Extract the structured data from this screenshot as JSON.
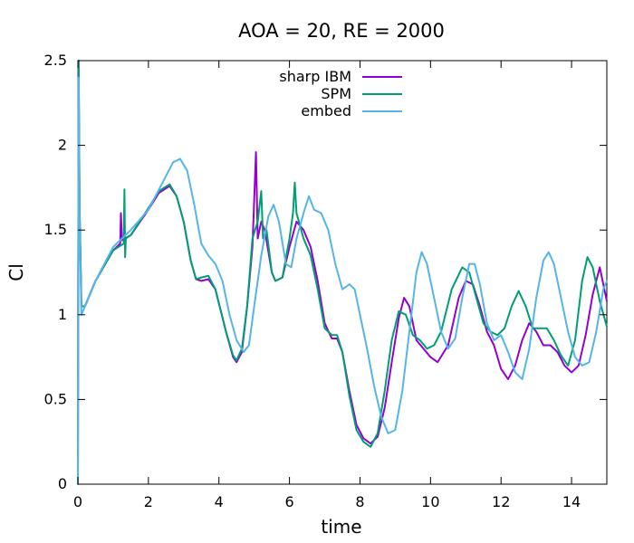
{
  "chart_data": {
    "type": "line",
    "title": "AOA = 20, RE = 2000",
    "xlabel": "time",
    "ylabel": "Cl",
    "xlim": [
      0,
      15
    ],
    "ylim": [
      0,
      2.5
    ],
    "xticks": [
      0,
      2,
      4,
      6,
      8,
      10,
      12,
      14
    ],
    "yticks": [
      0,
      0.5,
      1,
      1.5,
      2,
      2.5
    ],
    "xtick_labels": [
      "0",
      "2",
      "4",
      "6",
      "8",
      "10",
      "12",
      "14"
    ],
    "ytick_labels": [
      "0",
      "0.5",
      "1",
      "1.5",
      "2",
      "2.5"
    ],
    "grid": false,
    "legend_position": "top-center",
    "series": [
      {
        "name": "sharp IBM",
        "color": "#9400d3",
        "points": [
          [
            0.0,
            0.0
          ],
          [
            0.02,
            2.5
          ],
          [
            0.05,
            1.6
          ],
          [
            0.1,
            1.05
          ],
          [
            0.2,
            1.05
          ],
          [
            0.5,
            1.2
          ],
          [
            1.0,
            1.38
          ],
          [
            1.2,
            1.42
          ],
          [
            1.22,
            1.6
          ],
          [
            1.25,
            1.44
          ],
          [
            1.5,
            1.47
          ],
          [
            2.0,
            1.62
          ],
          [
            2.3,
            1.72
          ],
          [
            2.6,
            1.76
          ],
          [
            2.8,
            1.7
          ],
          [
            3.0,
            1.55
          ],
          [
            3.2,
            1.32
          ],
          [
            3.35,
            1.21
          ],
          [
            3.5,
            1.2
          ],
          [
            3.7,
            1.21
          ],
          [
            3.9,
            1.15
          ],
          [
            4.2,
            0.9
          ],
          [
            4.4,
            0.75
          ],
          [
            4.5,
            0.72
          ],
          [
            4.65,
            0.78
          ],
          [
            4.8,
            1.05
          ],
          [
            4.95,
            1.4
          ],
          [
            5.05,
            1.96
          ],
          [
            5.1,
            1.45
          ],
          [
            5.2,
            1.55
          ],
          [
            5.3,
            1.5
          ],
          [
            5.5,
            1.25
          ],
          [
            5.6,
            1.2
          ],
          [
            5.8,
            1.22
          ],
          [
            6.0,
            1.4
          ],
          [
            6.2,
            1.55
          ],
          [
            6.4,
            1.5
          ],
          [
            6.6,
            1.4
          ],
          [
            6.8,
            1.2
          ],
          [
            7.0,
            0.95
          ],
          [
            7.2,
            0.86
          ],
          [
            7.35,
            0.86
          ],
          [
            7.5,
            0.78
          ],
          [
            7.7,
            0.55
          ],
          [
            7.9,
            0.35
          ],
          [
            8.1,
            0.27
          ],
          [
            8.3,
            0.24
          ],
          [
            8.5,
            0.28
          ],
          [
            8.7,
            0.45
          ],
          [
            8.9,
            0.72
          ],
          [
            9.1,
            0.98
          ],
          [
            9.25,
            1.1
          ],
          [
            9.4,
            1.05
          ],
          [
            9.6,
            0.85
          ],
          [
            9.8,
            0.8
          ],
          [
            10.0,
            0.75
          ],
          [
            10.2,
            0.72
          ],
          [
            10.5,
            0.82
          ],
          [
            10.8,
            1.1
          ],
          [
            11.0,
            1.2
          ],
          [
            11.2,
            1.18
          ],
          [
            11.4,
            1.05
          ],
          [
            11.6,
            0.9
          ],
          [
            11.8,
            0.82
          ],
          [
            12.0,
            0.68
          ],
          [
            12.2,
            0.62
          ],
          [
            12.4,
            0.7
          ],
          [
            12.6,
            0.85
          ],
          [
            12.8,
            0.95
          ],
          [
            13.0,
            0.9
          ],
          [
            13.2,
            0.82
          ],
          [
            13.4,
            0.82
          ],
          [
            13.6,
            0.78
          ],
          [
            13.8,
            0.7
          ],
          [
            14.0,
            0.66
          ],
          [
            14.2,
            0.7
          ],
          [
            14.4,
            0.88
          ],
          [
            14.6,
            1.12
          ],
          [
            14.8,
            1.28
          ],
          [
            15.0,
            1.08
          ]
        ]
      },
      {
        "name": "SPM",
        "color": "#009e73",
        "points": [
          [
            0.0,
            0.0
          ],
          [
            0.02,
            2.5
          ],
          [
            0.05,
            1.6
          ],
          [
            0.1,
            1.05
          ],
          [
            0.2,
            1.05
          ],
          [
            0.5,
            1.2
          ],
          [
            1.0,
            1.38
          ],
          [
            1.3,
            1.42
          ],
          [
            1.32,
            1.74
          ],
          [
            1.34,
            1.34
          ],
          [
            1.36,
            1.45
          ],
          [
            1.5,
            1.47
          ],
          [
            2.0,
            1.63
          ],
          [
            2.3,
            1.73
          ],
          [
            2.6,
            1.77
          ],
          [
            2.8,
            1.7
          ],
          [
            3.0,
            1.55
          ],
          [
            3.2,
            1.32
          ],
          [
            3.35,
            1.21
          ],
          [
            3.5,
            1.22
          ],
          [
            3.7,
            1.23
          ],
          [
            3.9,
            1.15
          ],
          [
            4.2,
            0.9
          ],
          [
            4.4,
            0.76
          ],
          [
            4.5,
            0.73
          ],
          [
            4.65,
            0.8
          ],
          [
            4.8,
            1.05
          ],
          [
            4.95,
            1.45
          ],
          [
            5.1,
            1.55
          ],
          [
            5.2,
            1.73
          ],
          [
            5.25,
            1.45
          ],
          [
            5.35,
            1.5
          ],
          [
            5.5,
            1.25
          ],
          [
            5.6,
            1.2
          ],
          [
            5.8,
            1.22
          ],
          [
            6.0,
            1.45
          ],
          [
            6.1,
            1.6
          ],
          [
            6.15,
            1.78
          ],
          [
            6.2,
            1.6
          ],
          [
            6.4,
            1.45
          ],
          [
            6.6,
            1.35
          ],
          [
            6.8,
            1.15
          ],
          [
            7.0,
            0.92
          ],
          [
            7.2,
            0.88
          ],
          [
            7.35,
            0.88
          ],
          [
            7.5,
            0.78
          ],
          [
            7.7,
            0.52
          ],
          [
            7.9,
            0.32
          ],
          [
            8.1,
            0.25
          ],
          [
            8.3,
            0.22
          ],
          [
            8.5,
            0.3
          ],
          [
            8.7,
            0.55
          ],
          [
            8.9,
            0.85
          ],
          [
            9.1,
            1.02
          ],
          [
            9.3,
            1.0
          ],
          [
            9.5,
            0.88
          ],
          [
            9.7,
            0.85
          ],
          [
            9.9,
            0.8
          ],
          [
            10.1,
            0.82
          ],
          [
            10.3,
            0.9
          ],
          [
            10.6,
            1.15
          ],
          [
            10.9,
            1.28
          ],
          [
            11.1,
            1.25
          ],
          [
            11.3,
            1.1
          ],
          [
            11.5,
            0.95
          ],
          [
            11.7,
            0.9
          ],
          [
            11.9,
            0.88
          ],
          [
            12.1,
            0.92
          ],
          [
            12.3,
            1.05
          ],
          [
            12.5,
            1.14
          ],
          [
            12.7,
            1.05
          ],
          [
            12.9,
            0.92
          ],
          [
            13.1,
            0.92
          ],
          [
            13.3,
            0.92
          ],
          [
            13.5,
            0.85
          ],
          [
            13.7,
            0.76
          ],
          [
            13.9,
            0.7
          ],
          [
            14.1,
            0.85
          ],
          [
            14.3,
            1.2
          ],
          [
            14.45,
            1.34
          ],
          [
            14.6,
            1.28
          ],
          [
            14.8,
            1.08
          ],
          [
            15.0,
            0.93
          ]
        ]
      },
      {
        "name": "embed",
        "color": "#56b4e9",
        "points": [
          [
            0.0,
            0.0
          ],
          [
            0.02,
            2.4
          ],
          [
            0.05,
            1.5
          ],
          [
            0.1,
            1.0
          ],
          [
            0.2,
            1.05
          ],
          [
            0.5,
            1.2
          ],
          [
            1.0,
            1.4
          ],
          [
            1.5,
            1.5
          ],
          [
            2.0,
            1.62
          ],
          [
            2.4,
            1.78
          ],
          [
            2.7,
            1.9
          ],
          [
            2.9,
            1.92
          ],
          [
            3.1,
            1.85
          ],
          [
            3.3,
            1.65
          ],
          [
            3.5,
            1.42
          ],
          [
            3.7,
            1.35
          ],
          [
            3.9,
            1.3
          ],
          [
            4.1,
            1.2
          ],
          [
            4.3,
            1.0
          ],
          [
            4.5,
            0.85
          ],
          [
            4.7,
            0.78
          ],
          [
            4.85,
            0.82
          ],
          [
            5.0,
            1.05
          ],
          [
            5.2,
            1.35
          ],
          [
            5.4,
            1.58
          ],
          [
            5.55,
            1.65
          ],
          [
            5.7,
            1.55
          ],
          [
            5.9,
            1.3
          ],
          [
            6.05,
            1.28
          ],
          [
            6.2,
            1.45
          ],
          [
            6.4,
            1.6
          ],
          [
            6.55,
            1.7
          ],
          [
            6.7,
            1.62
          ],
          [
            6.9,
            1.6
          ],
          [
            7.1,
            1.5
          ],
          [
            7.3,
            1.3
          ],
          [
            7.5,
            1.15
          ],
          [
            7.7,
            1.18
          ],
          [
            7.85,
            1.15
          ],
          [
            8.0,
            1.0
          ],
          [
            8.2,
            0.8
          ],
          [
            8.4,
            0.58
          ],
          [
            8.6,
            0.4
          ],
          [
            8.8,
            0.3
          ],
          [
            9.0,
            0.32
          ],
          [
            9.2,
            0.55
          ],
          [
            9.4,
            0.9
          ],
          [
            9.6,
            1.25
          ],
          [
            9.75,
            1.37
          ],
          [
            9.9,
            1.3
          ],
          [
            10.1,
            1.1
          ],
          [
            10.3,
            0.9
          ],
          [
            10.5,
            0.8
          ],
          [
            10.7,
            0.86
          ],
          [
            10.9,
            1.1
          ],
          [
            11.1,
            1.3
          ],
          [
            11.25,
            1.3
          ],
          [
            11.4,
            1.18
          ],
          [
            11.6,
            0.95
          ],
          [
            11.8,
            0.85
          ],
          [
            12.0,
            0.88
          ],
          [
            12.2,
            0.78
          ],
          [
            12.4,
            0.66
          ],
          [
            12.6,
            0.62
          ],
          [
            12.8,
            0.8
          ],
          [
            13.0,
            1.1
          ],
          [
            13.2,
            1.32
          ],
          [
            13.35,
            1.37
          ],
          [
            13.5,
            1.3
          ],
          [
            13.7,
            1.1
          ],
          [
            13.9,
            0.9
          ],
          [
            14.1,
            0.75
          ],
          [
            14.3,
            0.7
          ],
          [
            14.5,
            0.72
          ],
          [
            14.7,
            0.9
          ],
          [
            14.9,
            1.15
          ],
          [
            15.0,
            1.2
          ]
        ]
      }
    ]
  }
}
